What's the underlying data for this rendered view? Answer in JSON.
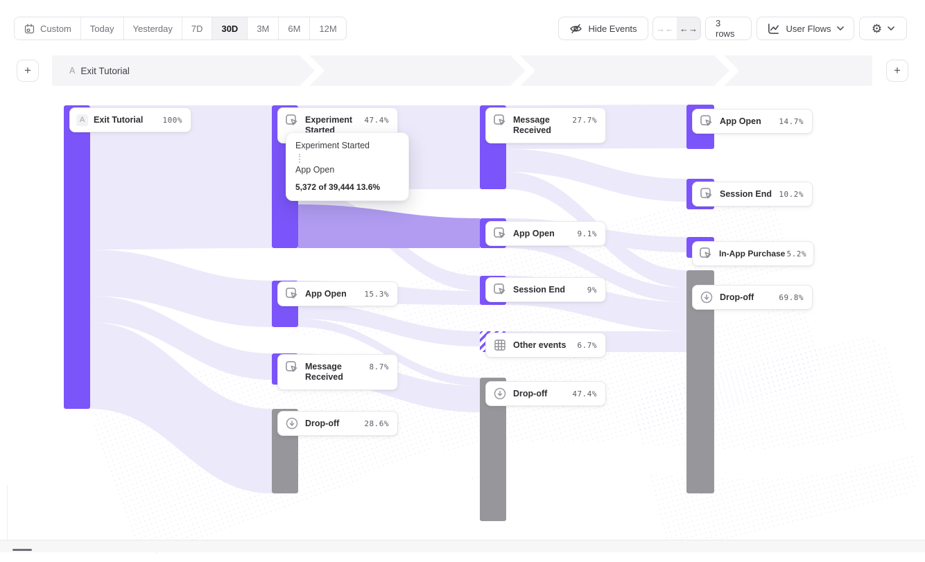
{
  "toolbar": {
    "date_ranges": [
      {
        "label": "Custom",
        "icon": "calendar",
        "selected": false
      },
      {
        "label": "Today",
        "selected": false
      },
      {
        "label": "Yesterday",
        "selected": false
      },
      {
        "label": "7D",
        "selected": false
      },
      {
        "label": "30D",
        "selected": true
      },
      {
        "label": "3M",
        "selected": false
      },
      {
        "label": "6M",
        "selected": false
      },
      {
        "label": "12M",
        "selected": false
      }
    ],
    "hide_events_label": "Hide Events",
    "collapse_arrows": "→←",
    "expand_arrows": "←→",
    "rows_label": "3 rows",
    "chart_type_label": "User Flows",
    "gear_glyph": "⚙"
  },
  "lane_header": {
    "add_left": "+",
    "add_right": "+",
    "step_badge": "A",
    "step_label": "Exit Tutorial"
  },
  "flows": {
    "columns": [
      {
        "nodes": [
          {
            "badge": "A",
            "label": "Exit Tutorial",
            "percent": "100%",
            "type": "start"
          }
        ]
      },
      {
        "nodes": [
          {
            "label": "Experiment Started",
            "percent": "47.4%",
            "type": "event"
          },
          {
            "label": "App Open",
            "percent": "15.3%",
            "type": "event"
          },
          {
            "label": "Message Received",
            "percent": "8.7%",
            "type": "event"
          },
          {
            "label": "Drop-off",
            "percent": "28.6%",
            "type": "dropoff"
          }
        ]
      },
      {
        "nodes": [
          {
            "label": "Message Received",
            "percent": "27.7%",
            "type": "event"
          },
          {
            "label": "App Open",
            "percent": "9.1%",
            "type": "event"
          },
          {
            "label": "Session End",
            "percent": "9%",
            "type": "event"
          },
          {
            "label": "Other events",
            "percent": "6.7%",
            "type": "other"
          },
          {
            "label": "Drop-off",
            "percent": "47.4%",
            "type": "dropoff"
          }
        ]
      },
      {
        "nodes": [
          {
            "label": "App Open",
            "percent": "14.7%",
            "type": "event"
          },
          {
            "label": "Session End",
            "percent": "10.2%",
            "type": "event"
          },
          {
            "label": "In-App Purchase",
            "percent": "5.2%",
            "type": "event"
          },
          {
            "label": "Drop-off",
            "percent": "69.8%",
            "type": "dropoff"
          }
        ]
      }
    ]
  },
  "tooltip": {
    "source_event": "Experiment Started",
    "target_event": "App Open",
    "stats": "5,372 of 39,444 13.6%"
  },
  "colors": {
    "accent_purple": "#7c55fa",
    "dropoff_gray": "#97969b",
    "ribbon_light": "#ece9fa",
    "ribbon_highlight": "#b19cf2",
    "band_gray": "#f5f4f6"
  }
}
